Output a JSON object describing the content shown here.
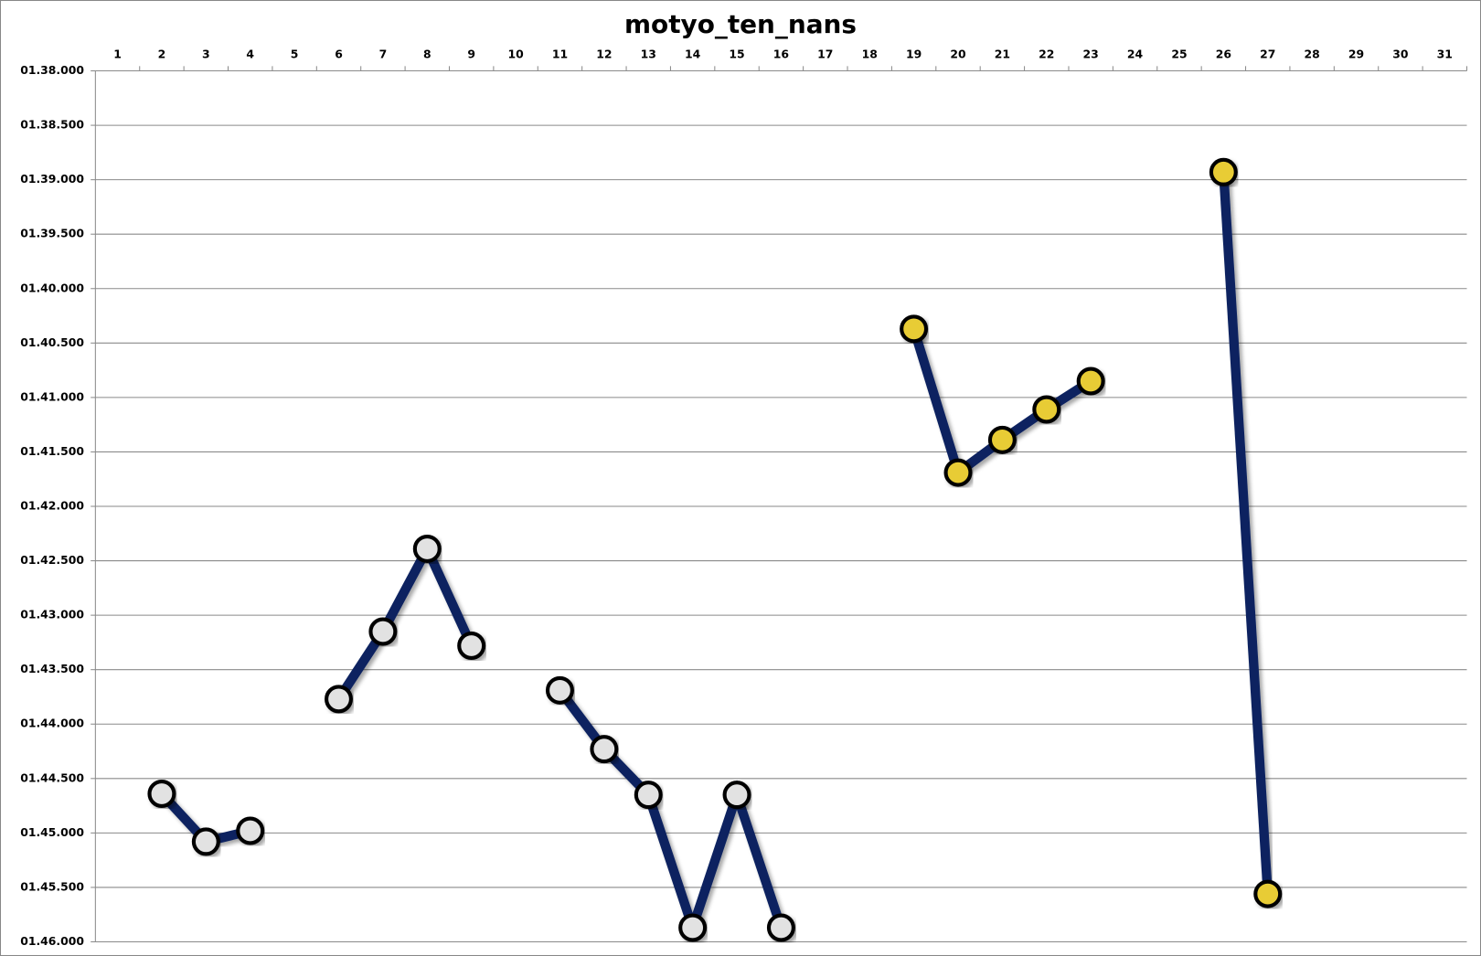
{
  "chart_data": {
    "type": "line",
    "title": "motyo_ten_nans",
    "categories": [
      "1",
      "2",
      "3",
      "4",
      "5",
      "6",
      "7",
      "8",
      "9",
      "10",
      "11",
      "12",
      "13",
      "14",
      "15",
      "16",
      "17",
      "18",
      "19",
      "20",
      "21",
      "22",
      "23",
      "24",
      "25",
      "26",
      "27",
      "28",
      "29",
      "30",
      "31"
    ],
    "series": [
      {
        "name": "motyo_ten_nans",
        "color": "#0b2460",
        "values": [
          null,
          104.64,
          105.08,
          104.98,
          null,
          103.77,
          103.15,
          102.39,
          103.28,
          null,
          103.69,
          104.23,
          104.65,
          105.87,
          104.65,
          105.87,
          null,
          null,
          100.37,
          101.69,
          101.39,
          101.11,
          100.85,
          null,
          null,
          98.93,
          105.56,
          null,
          null,
          null,
          null
        ],
        "marker_colors": [
          null,
          "#e2e2e2",
          "#e2e2e2",
          "#e2e2e2",
          null,
          "#e2e2e2",
          "#e2e2e2",
          "#e2e2e2",
          "#e2e2e2",
          null,
          "#e2e2e2",
          "#e2e2e2",
          "#e2e2e2",
          "#e2e2e2",
          "#e2e2e2",
          "#e2e2e2",
          null,
          null,
          "#e8cc35",
          "#e8cc35",
          "#e8cc35",
          "#e8cc35",
          "#e8cc35",
          null,
          null,
          "#e8cc35",
          "#e8cc35",
          null,
          null,
          null,
          null
        ]
      }
    ],
    "ylim": [
      98,
      106
    ],
    "y_reversed": true,
    "yticks": [
      {
        "value": 98,
        "label": "01.38.000"
      },
      {
        "value": 98.5,
        "label": "01.38.500"
      },
      {
        "value": 99,
        "label": "01.39.000"
      },
      {
        "value": 99.5,
        "label": "01.39.500"
      },
      {
        "value": 100,
        "label": "01.40.000"
      },
      {
        "value": 100.5,
        "label": "01.40.500"
      },
      {
        "value": 101,
        "label": "01.41.000"
      },
      {
        "value": 101.5,
        "label": "01.41.500"
      },
      {
        "value": 102,
        "label": "01.42.000"
      },
      {
        "value": 102.5,
        "label": "01.42.500"
      },
      {
        "value": 103,
        "label": "01.43.000"
      },
      {
        "value": 103.5,
        "label": "01.43.500"
      },
      {
        "value": 104,
        "label": "01.44.000"
      },
      {
        "value": 104.5,
        "label": "01.44.500"
      },
      {
        "value": 105,
        "label": "01.45.000"
      },
      {
        "value": 105.5,
        "label": "01.45.500"
      },
      {
        "value": 106,
        "label": "01.46.000"
      }
    ],
    "grid": true
  }
}
